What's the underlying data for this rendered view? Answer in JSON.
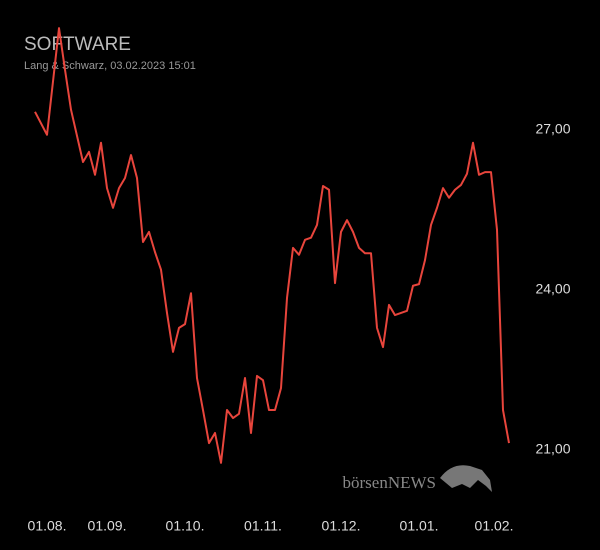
{
  "chart_data": {
    "type": "line",
    "title": "SOFTWARE",
    "subtitle": "Lang & Schwarz, 03.02.2023 15:01",
    "watermark": "börsenNEWS",
    "x": [
      0,
      2,
      4,
      5,
      6,
      8,
      9,
      10,
      11,
      12,
      13,
      14,
      15,
      16,
      17,
      18,
      19,
      20,
      21,
      22,
      23,
      24,
      25,
      26,
      27,
      28,
      29,
      30,
      31,
      32,
      33,
      34,
      35,
      36,
      37,
      38,
      39,
      40,
      41,
      42,
      43,
      44,
      45,
      46,
      47,
      48,
      49,
      50,
      51,
      52,
      53,
      54,
      55,
      56,
      57,
      58,
      59,
      60,
      61,
      62,
      63,
      64,
      65,
      66,
      67,
      68,
      69,
      70,
      71,
      72,
      73,
      74,
      75,
      76,
      77,
      78,
      79
    ],
    "series": [
      {
        "name": "SOFTWARE",
        "color": "#e8453c",
        "values": [
          27.34,
          26.91,
          28.91,
          28.13,
          27.38,
          26.4,
          26.59,
          26.16,
          26.76,
          25.91,
          25.54,
          25.91,
          26.1,
          26.53,
          26.1,
          24.9,
          25.09,
          24.71,
          24.38,
          23.57,
          22.84,
          23.29,
          23.36,
          23.94,
          22.35,
          21.75,
          21.13,
          21.32,
          20.76,
          21.75,
          21.6,
          21.68,
          22.35,
          21.32,
          22.39,
          22.31,
          21.75,
          21.75,
          22.16,
          23.85,
          24.79,
          24.66,
          24.94,
          24.98,
          25.22,
          25.95,
          25.88,
          24.13,
          25.09,
          25.31,
          25.09,
          24.79,
          24.69,
          24.69,
          23.29,
          22.93,
          23.72,
          23.53,
          23.57,
          23.61,
          24.08,
          24.11,
          24.56,
          25.22,
          25.54,
          25.91,
          25.73,
          25.88,
          25.97,
          26.18,
          26.76,
          26.16,
          26.21,
          26.21,
          25.13,
          21.75,
          21.13
        ]
      }
    ],
    "xlim": [
      0,
      79
    ],
    "xticks": [
      {
        "value": 2,
        "label": "01.08."
      },
      {
        "value": 12,
        "label": "01.09."
      },
      {
        "value": 25,
        "label": "01.10."
      },
      {
        "value": 38,
        "label": "01.11."
      },
      {
        "value": 51,
        "label": "01.12."
      },
      {
        "value": 64,
        "label": "01.01."
      },
      {
        "value": 76.5,
        "label": "01.02."
      }
    ],
    "ylim": [
      20.5,
      29
    ],
    "yticks": [
      {
        "value": 21,
        "label": "21,00"
      },
      {
        "value": 24,
        "label": "24,00"
      },
      {
        "value": 27,
        "label": "27,00"
      }
    ],
    "grid": false
  }
}
